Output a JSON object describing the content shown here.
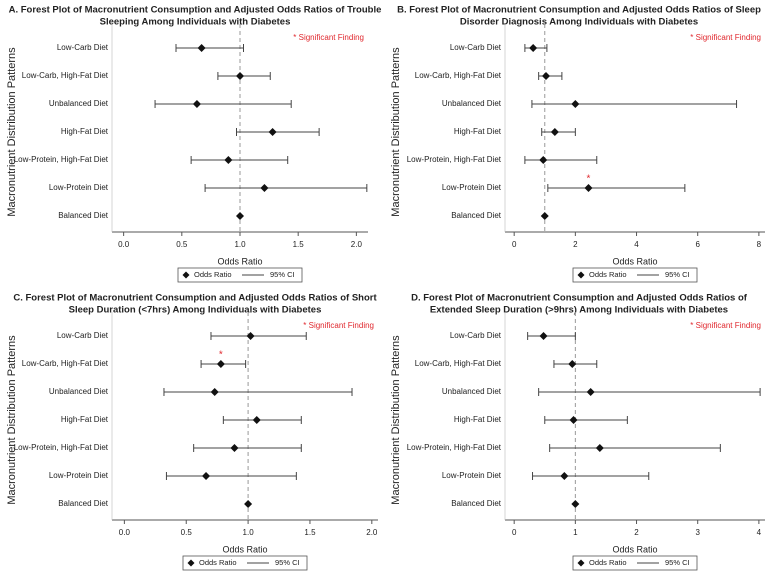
{
  "chart_data": [
    {
      "type": "forest",
      "title": [
        "A. Forest Plot of Macronutrient Consumption and Adjusted Odds Ratios of Trouble",
        "Sleeping Among Individuals with Diabetes"
      ],
      "xlabel": "Odds Ratio",
      "ylabel": "Macronutrient Distribution Patterns",
      "annotation": "* Significant Finding",
      "significance_marker": "*",
      "legend_labels": [
        "Odds Ratio",
        "95% CI"
      ],
      "categories": [
        "Low-Carb Diet",
        "Low-Carb, High-Fat Diet",
        "Unbalanced Diet",
        "High-Fat Diet",
        "Low-Protein, High-Fat Diet",
        "Low-Protein Diet",
        "Balanced Diet"
      ],
      "values": [
        0.67,
        1.0,
        0.63,
        1.28,
        0.9,
        1.21,
        1
      ],
      "ci_low": [
        0.45,
        0.81,
        0.27,
        0.97,
        0.58,
        0.7,
        null
      ],
      "ci_high": [
        1.03,
        1.26,
        1.44,
        1.68,
        1.41,
        2.09,
        null
      ],
      "significant": [
        false,
        false,
        false,
        false,
        false,
        false,
        false
      ],
      "reference_line": 1,
      "xlim": [
        -0.1,
        2.1
      ],
      "xticks": [
        {
          "value": 0,
          "label": "0.0"
        },
        {
          "value": 0.5,
          "label": "0.5"
        },
        {
          "value": 1,
          "label": "1.0"
        },
        {
          "value": 1.5,
          "label": "1.5"
        },
        {
          "value": 2,
          "label": "2.0"
        }
      ]
    },
    {
      "type": "forest",
      "title": [
        "B. Forest Plot of Macronutrient Consumption and Adjusted Odds Ratios of Sleep",
        "Disorder Diagnosis Among Individuals with Diabetes"
      ],
      "xlabel": "Odds Ratio",
      "ylabel": "Macronutrient Distribution Patterns",
      "annotation": "* Significant Finding",
      "significance_marker": "*",
      "legend_labels": [
        "Odds Ratio",
        "95% CI"
      ],
      "categories": [
        "Low-Carb Diet",
        "Low-Carb, High-Fat Diet",
        "Unbalanced Diet",
        "High-Fat Diet",
        "Low-Protein, High-Fat Diet",
        "Low-Protein Diet",
        "Balanced Diet"
      ],
      "values": [
        0.62,
        1.04,
        2.0,
        1.33,
        0.95,
        2.43,
        1
      ],
      "ci_low": [
        0.35,
        0.8,
        0.58,
        0.9,
        0.35,
        1.1,
        null
      ],
      "ci_high": [
        1.07,
        1.56,
        7.27,
        2.0,
        2.7,
        5.58,
        null
      ],
      "significant": [
        false,
        false,
        false,
        false,
        false,
        true,
        false
      ],
      "reference_line": 1,
      "xlim": [
        -0.3,
        8.2
      ],
      "xticks": [
        0,
        2,
        4,
        6,
        8
      ]
    },
    {
      "type": "forest",
      "title": [
        "C. Forest Plot of Macronutrient Consumption and Adjusted Odds Ratios of Short",
        "Sleep Duration (<7hrs) Among Individuals with Diabetes"
      ],
      "xlabel": "Odds Ratio",
      "ylabel": "Macronutrient Distribution Patterns",
      "annotation": "* Significant Finding",
      "significance_marker": "*",
      "legend_labels": [
        "Odds Ratio",
        "95% CI"
      ],
      "categories": [
        "Low-Carb Diet",
        "Low-Carb, High-Fat Diet",
        "Unbalanced Diet",
        "High-Fat Diet",
        "Low-Protein, High-Fat Diet",
        "Low-Protein Diet",
        "Balanced Diet"
      ],
      "values": [
        1.02,
        0.78,
        0.73,
        1.07,
        0.89,
        0.66,
        1
      ],
      "ci_low": [
        0.7,
        0.62,
        0.32,
        0.8,
        0.56,
        0.34,
        null
      ],
      "ci_high": [
        1.47,
        0.98,
        1.84,
        1.43,
        1.43,
        1.39,
        null
      ],
      "significant": [
        false,
        true,
        false,
        false,
        false,
        false,
        false
      ],
      "reference_line": 1,
      "xlim": [
        -0.1,
        2.05
      ],
      "xticks": [
        {
          "value": 0,
          "label": "0.0"
        },
        {
          "value": 0.5,
          "label": "0.5"
        },
        {
          "value": 1,
          "label": "1.0"
        },
        {
          "value": 1.5,
          "label": "1.5"
        },
        {
          "value": 2,
          "label": "2.0"
        }
      ]
    },
    {
      "type": "forest",
      "title": [
        "D. Forest Plot of Macronutrient Consumption and Adjusted Odds Ratios of",
        "Extended Sleep Duration (>9hrs) Among Individuals with Diabetes"
      ],
      "xlabel": "Odds Ratio",
      "ylabel": "Macronutrient Distribution Patterns",
      "annotation": "* Significant Finding",
      "significance_marker": "*",
      "legend_labels": [
        "Odds Ratio",
        "95% CI"
      ],
      "categories": [
        "Low-Carb Diet",
        "Low-Carb, High-Fat Diet",
        "Unbalanced Diet",
        "High-Fat Diet",
        "Low-Protein, High-Fat Diet",
        "Low-Protein Diet",
        "Balanced Diet"
      ],
      "values": [
        0.48,
        0.95,
        1.25,
        0.97,
        1.4,
        0.82,
        1
      ],
      "ci_low": [
        0.22,
        0.65,
        0.4,
        0.5,
        0.58,
        0.3,
        null
      ],
      "ci_high": [
        1.0,
        1.35,
        4.02,
        1.85,
        3.37,
        2.2,
        null
      ],
      "significant": [
        false,
        false,
        false,
        false,
        false,
        false,
        false
      ],
      "reference_line": 1,
      "xlim": [
        -0.15,
        4.1
      ],
      "xticks": [
        0,
        1,
        2,
        3,
        4
      ]
    }
  ]
}
